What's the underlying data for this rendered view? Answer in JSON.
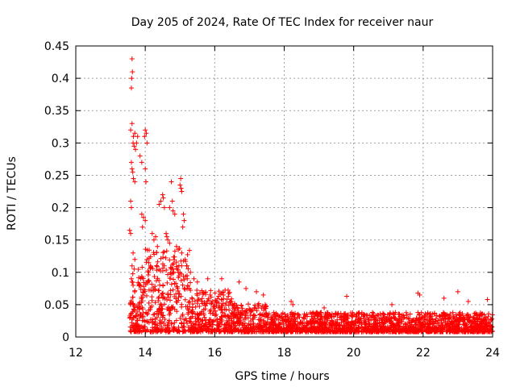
{
  "chart_data": {
    "type": "scatter",
    "title": "Day 205 of 2024, Rate Of TEC Index for receiver naur",
    "xlabel": "GPS time / hours",
    "ylabel": "ROTI / TECUs",
    "xlim": [
      12,
      24
    ],
    "ylim": [
      0,
      0.45
    ],
    "x_ticks": [
      "12",
      "14",
      "16",
      "18",
      "20",
      "22",
      "24"
    ],
    "y_ticks": [
      "0",
      "0.05",
      "0.1",
      "0.15",
      "0.2",
      "0.25",
      "0.3",
      "0.35",
      "0.4",
      "0.45"
    ],
    "grid": true,
    "marker": "plus",
    "series": [
      {
        "name": "ROTI",
        "color": "#ff0000",
        "points": [
          [
            13.62,
            0.43
          ],
          [
            13.63,
            0.41
          ],
          [
            13.61,
            0.4
          ],
          [
            13.6,
            0.385
          ],
          [
            13.62,
            0.33
          ],
          [
            13.58,
            0.32
          ],
          [
            13.66,
            0.31
          ],
          [
            13.75,
            0.3
          ],
          [
            13.7,
            0.315
          ],
          [
            13.68,
            0.295
          ],
          [
            13.72,
            0.29
          ],
          [
            13.65,
            0.3
          ],
          [
            13.78,
            0.31
          ],
          [
            14.0,
            0.32
          ],
          [
            14.03,
            0.315
          ],
          [
            14.05,
            0.3
          ],
          [
            13.98,
            0.31
          ],
          [
            13.6,
            0.27
          ],
          [
            13.62,
            0.26
          ],
          [
            13.64,
            0.255
          ],
          [
            13.66,
            0.245
          ],
          [
            13.7,
            0.24
          ],
          [
            13.85,
            0.28
          ],
          [
            13.9,
            0.27
          ],
          [
            14.0,
            0.26
          ],
          [
            14.02,
            0.24
          ],
          [
            14.75,
            0.24
          ],
          [
            15.02,
            0.245
          ],
          [
            15.0,
            0.235
          ],
          [
            15.03,
            0.23
          ],
          [
            15.05,
            0.225
          ],
          [
            14.5,
            0.22
          ],
          [
            14.52,
            0.215
          ],
          [
            14.45,
            0.21
          ],
          [
            14.4,
            0.205
          ],
          [
            14.55,
            0.2
          ],
          [
            14.78,
            0.21
          ],
          [
            14.8,
            0.195
          ],
          [
            14.7,
            0.2
          ],
          [
            14.85,
            0.19
          ],
          [
            13.58,
            0.21
          ],
          [
            13.6,
            0.2
          ],
          [
            13.55,
            0.165
          ],
          [
            13.58,
            0.16
          ],
          [
            15.1,
            0.19
          ],
          [
            15.12,
            0.18
          ],
          [
            15.08,
            0.17
          ],
          [
            13.9,
            0.19
          ],
          [
            13.95,
            0.185
          ],
          [
            14.0,
            0.18
          ],
          [
            13.92,
            0.17
          ],
          [
            14.2,
            0.16
          ],
          [
            14.3,
            0.155
          ],
          [
            14.25,
            0.15
          ],
          [
            14.35,
            0.14
          ],
          [
            14.6,
            0.16
          ],
          [
            14.62,
            0.155
          ],
          [
            14.65,
            0.15
          ],
          [
            14.7,
            0.145
          ],
          [
            14.9,
            0.14
          ],
          [
            14.95,
            0.135
          ],
          [
            15.05,
            0.13
          ],
          [
            15.15,
            0.12
          ],
          [
            15.2,
            0.11
          ],
          [
            13.65,
            0.13
          ],
          [
            13.7,
            0.12
          ],
          [
            13.62,
            0.11
          ],
          [
            13.68,
            0.105
          ],
          [
            14.05,
            0.12
          ],
          [
            14.1,
            0.115
          ],
          [
            14.15,
            0.11
          ],
          [
            14.1,
            0.1
          ],
          [
            15.3,
            0.1
          ],
          [
            15.4,
            0.09
          ],
          [
            15.5,
            0.085
          ],
          [
            15.8,
            0.09
          ],
          [
            16.2,
            0.09
          ],
          [
            16.7,
            0.085
          ],
          [
            16.9,
            0.075
          ],
          [
            17.2,
            0.07
          ],
          [
            17.4,
            0.065
          ],
          [
            13.6,
            0.09
          ],
          [
            13.62,
            0.085
          ],
          [
            13.65,
            0.08
          ],
          [
            18.2,
            0.055
          ],
          [
            18.25,
            0.05
          ],
          [
            19.15,
            0.045
          ],
          [
            19.8,
            0.063
          ],
          [
            21.1,
            0.05
          ],
          [
            21.85,
            0.068
          ],
          [
            21.9,
            0.065
          ],
          [
            22.6,
            0.06
          ],
          [
            23.0,
            0.07
          ],
          [
            23.3,
            0.055
          ],
          [
            23.85,
            0.058
          ]
        ]
      }
    ]
  }
}
